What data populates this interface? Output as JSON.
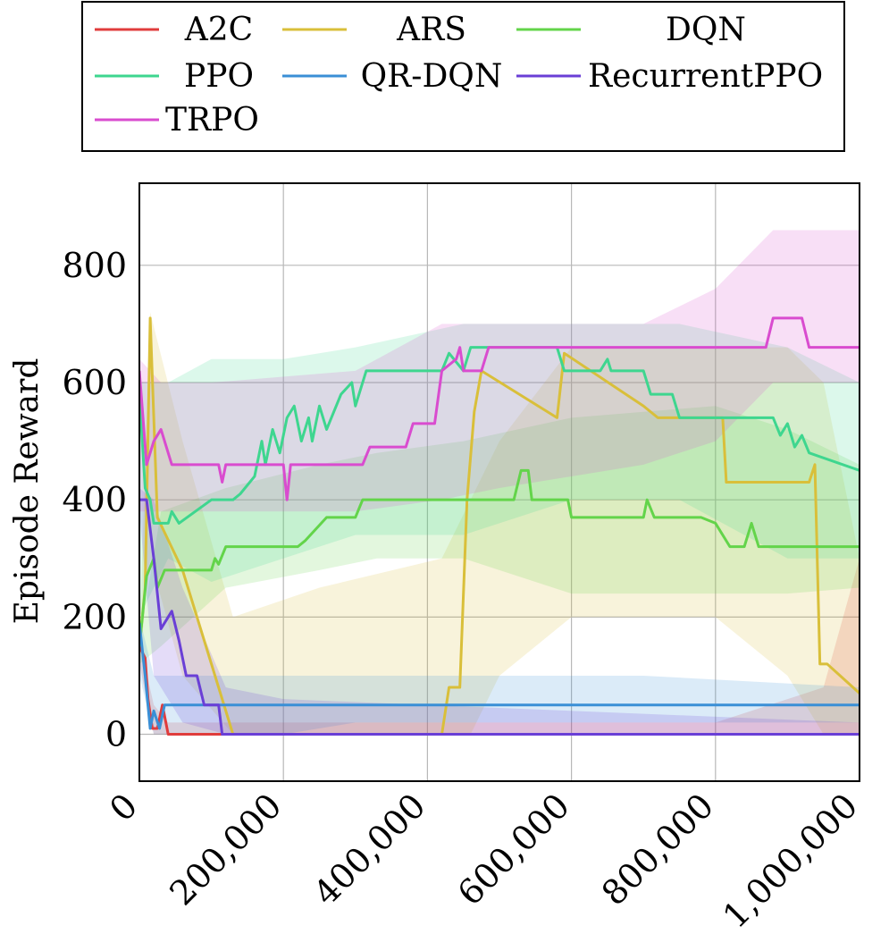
{
  "chart_data": {
    "type": "line",
    "title": "",
    "xlabel": "",
    "ylabel": "Episode Reward",
    "xlim": [
      0,
      1000000
    ],
    "ylim": [
      -80,
      940
    ],
    "xticks": [
      0,
      200000,
      400000,
      600000,
      800000,
      1000000
    ],
    "xtick_labels": [
      "0",
      "200,000",
      "400,000",
      "600,000",
      "800,000",
      "1,000,000"
    ],
    "yticks": [
      0,
      200,
      400,
      600,
      800
    ],
    "ytick_labels": [
      "0",
      "200",
      "400",
      "600",
      "800"
    ],
    "grid": true,
    "legend_position": "top",
    "series": [
      {
        "name": "A2C",
        "color": "#e03c3c",
        "points": [
          [
            0,
            150
          ],
          [
            8000,
            130
          ],
          [
            12000,
            60
          ],
          [
            18000,
            10
          ],
          [
            25000,
            10
          ],
          [
            32000,
            50
          ],
          [
            40000,
            0
          ],
          [
            1000000,
            0
          ]
        ],
        "band": [
          [
            0,
            160,
            120
          ],
          [
            20000,
            50,
            0
          ],
          [
            40000,
            20,
            0
          ],
          [
            800000,
            20,
            0
          ],
          [
            950000,
            80,
            0
          ],
          [
            1000000,
            300,
            0
          ]
        ]
      },
      {
        "name": "ARS",
        "color": "#d9bf3a",
        "points": [
          [
            0,
            150
          ],
          [
            8000,
            250
          ],
          [
            15000,
            710
          ],
          [
            25000,
            370
          ],
          [
            60000,
            280
          ],
          [
            100000,
            120
          ],
          [
            130000,
            0
          ],
          [
            420000,
            0
          ],
          [
            430000,
            80
          ],
          [
            445000,
            80
          ],
          [
            455000,
            400
          ],
          [
            465000,
            550
          ],
          [
            475000,
            620
          ],
          [
            580000,
            540
          ],
          [
            590000,
            650
          ],
          [
            700000,
            560
          ],
          [
            720000,
            540
          ],
          [
            810000,
            540
          ],
          [
            815000,
            430
          ],
          [
            930000,
            430
          ],
          [
            938000,
            460
          ],
          [
            945000,
            120
          ],
          [
            955000,
            120
          ],
          [
            1000000,
            70
          ]
        ],
        "band": [
          [
            0,
            160,
            120
          ],
          [
            15000,
            720,
            300
          ],
          [
            60000,
            500,
            100
          ],
          [
            130000,
            200,
            0
          ],
          [
            250000,
            250,
            0
          ],
          [
            420000,
            300,
            0
          ],
          [
            460000,
            400,
            0
          ],
          [
            500000,
            500,
            100
          ],
          [
            600000,
            660,
            200
          ],
          [
            700000,
            660,
            200
          ],
          [
            800000,
            660,
            200
          ],
          [
            900000,
            660,
            100
          ],
          [
            950000,
            600,
            0
          ],
          [
            1000000,
            300,
            0
          ]
        ]
      },
      {
        "name": "DQN",
        "color": "#63d44a",
        "points": [
          [
            0,
            150
          ],
          [
            10000,
            270
          ],
          [
            20000,
            300
          ],
          [
            25000,
            250
          ],
          [
            35000,
            280
          ],
          [
            100000,
            280
          ],
          [
            105000,
            300
          ],
          [
            110000,
            290
          ],
          [
            120000,
            320
          ],
          [
            220000,
            320
          ],
          [
            230000,
            330
          ],
          [
            260000,
            370
          ],
          [
            300000,
            370
          ],
          [
            310000,
            400
          ],
          [
            520000,
            400
          ],
          [
            530000,
            450
          ],
          [
            540000,
            450
          ],
          [
            545000,
            400
          ],
          [
            595000,
            400
          ],
          [
            600000,
            370
          ],
          [
            700000,
            370
          ],
          [
            705000,
            400
          ],
          [
            715000,
            370
          ],
          [
            780000,
            370
          ],
          [
            800000,
            360
          ],
          [
            820000,
            320
          ],
          [
            840000,
            320
          ],
          [
            850000,
            360
          ],
          [
            860000,
            320
          ],
          [
            880000,
            320
          ],
          [
            900000,
            320
          ],
          [
            1000000,
            320
          ]
        ],
        "band": [
          [
            0,
            160,
            120
          ],
          [
            30000,
            380,
            150
          ],
          [
            120000,
            420,
            250
          ],
          [
            250000,
            460,
            280
          ],
          [
            330000,
            480,
            300
          ],
          [
            450000,
            500,
            300
          ],
          [
            600000,
            540,
            240
          ],
          [
            800000,
            560,
            240
          ],
          [
            900000,
            520,
            240
          ],
          [
            1000000,
            460,
            250
          ]
        ]
      },
      {
        "name": "PPO",
        "color": "#3ed68f",
        "points": [
          [
            0,
            580
          ],
          [
            8000,
            420
          ],
          [
            15000,
            400
          ],
          [
            20000,
            360
          ],
          [
            40000,
            360
          ],
          [
            45000,
            380
          ],
          [
            55000,
            360
          ],
          [
            100000,
            400
          ],
          [
            130000,
            400
          ],
          [
            140000,
            410
          ],
          [
            160000,
            440
          ],
          [
            170000,
            500
          ],
          [
            175000,
            460
          ],
          [
            185000,
            520
          ],
          [
            195000,
            480
          ],
          [
            205000,
            540
          ],
          [
            215000,
            560
          ],
          [
            225000,
            500
          ],
          [
            235000,
            540
          ],
          [
            240000,
            500
          ],
          [
            250000,
            560
          ],
          [
            260000,
            520
          ],
          [
            280000,
            580
          ],
          [
            295000,
            600
          ],
          [
            300000,
            560
          ],
          [
            315000,
            620
          ],
          [
            420000,
            620
          ],
          [
            430000,
            650
          ],
          [
            450000,
            620
          ],
          [
            460000,
            660
          ],
          [
            580000,
            660
          ],
          [
            590000,
            620
          ],
          [
            640000,
            620
          ],
          [
            650000,
            640
          ],
          [
            655000,
            620
          ],
          [
            700000,
            620
          ],
          [
            710000,
            580
          ],
          [
            740000,
            580
          ],
          [
            750000,
            540
          ],
          [
            880000,
            540
          ],
          [
            890000,
            510
          ],
          [
            900000,
            530
          ],
          [
            910000,
            490
          ],
          [
            920000,
            510
          ],
          [
            930000,
            480
          ],
          [
            1000000,
            450
          ]
        ],
        "band": [
          [
            0,
            600,
            200
          ],
          [
            40000,
            600,
            300
          ],
          [
            100000,
            640,
            260
          ],
          [
            200000,
            640,
            300
          ],
          [
            300000,
            660,
            340
          ],
          [
            450000,
            700,
            340
          ],
          [
            600000,
            700,
            400
          ],
          [
            750000,
            700,
            400
          ],
          [
            900000,
            660,
            300
          ],
          [
            1000000,
            600,
            300
          ]
        ]
      },
      {
        "name": "QR-DQN",
        "color": "#3a8fd6",
        "points": [
          [
            0,
            190
          ],
          [
            8000,
            100
          ],
          [
            15000,
            10
          ],
          [
            20000,
            40
          ],
          [
            28000,
            10
          ],
          [
            35000,
            50
          ],
          [
            1000000,
            50
          ]
        ],
        "band": [
          [
            0,
            200,
            100
          ],
          [
            20000,
            100,
            0
          ],
          [
            40000,
            100,
            0
          ],
          [
            200000,
            100,
            0
          ],
          [
            300000,
            100,
            20
          ],
          [
            500000,
            100,
            20
          ],
          [
            700000,
            100,
            20
          ],
          [
            1000000,
            80,
            20
          ]
        ]
      },
      {
        "name": "RecurrentPPO",
        "color": "#6a3fd6",
        "points": [
          [
            0,
            400
          ],
          [
            10000,
            400
          ],
          [
            20000,
            300
          ],
          [
            30000,
            180
          ],
          [
            45000,
            210
          ],
          [
            55000,
            160
          ],
          [
            65000,
            100
          ],
          [
            80000,
            100
          ],
          [
            90000,
            50
          ],
          [
            110000,
            50
          ],
          [
            115000,
            0
          ],
          [
            1000000,
            0
          ]
        ],
        "band": [
          [
            0,
            420,
            380
          ],
          [
            20000,
            400,
            100
          ],
          [
            60000,
            250,
            20
          ],
          [
            120000,
            80,
            0
          ],
          [
            200000,
            60,
            0
          ],
          [
            1000000,
            20,
            0
          ]
        ]
      },
      {
        "name": "TRPO",
        "color": "#d94ccf",
        "points": [
          [
            0,
            620
          ],
          [
            10000,
            460
          ],
          [
            20000,
            500
          ],
          [
            30000,
            520
          ],
          [
            45000,
            460
          ],
          [
            110000,
            460
          ],
          [
            115000,
            430
          ],
          [
            120000,
            460
          ],
          [
            200000,
            460
          ],
          [
            205000,
            400
          ],
          [
            210000,
            460
          ],
          [
            310000,
            460
          ],
          [
            320000,
            490
          ],
          [
            370000,
            490
          ],
          [
            380000,
            530
          ],
          [
            410000,
            530
          ],
          [
            420000,
            620
          ],
          [
            440000,
            640
          ],
          [
            445000,
            660
          ],
          [
            450000,
            620
          ],
          [
            475000,
            620
          ],
          [
            485000,
            660
          ],
          [
            870000,
            660
          ],
          [
            880000,
            710
          ],
          [
            920000,
            710
          ],
          [
            930000,
            660
          ],
          [
            1000000,
            660
          ]
        ],
        "band": [
          [
            0,
            640,
            380
          ],
          [
            30000,
            600,
            380
          ],
          [
            100000,
            600,
            380
          ],
          [
            300000,
            620,
            380
          ],
          [
            420000,
            700,
            400
          ],
          [
            500000,
            700,
            420
          ],
          [
            700000,
            700,
            460
          ],
          [
            800000,
            760,
            500
          ],
          [
            880000,
            860,
            600
          ],
          [
            1000000,
            860,
            600
          ]
        ]
      }
    ]
  }
}
